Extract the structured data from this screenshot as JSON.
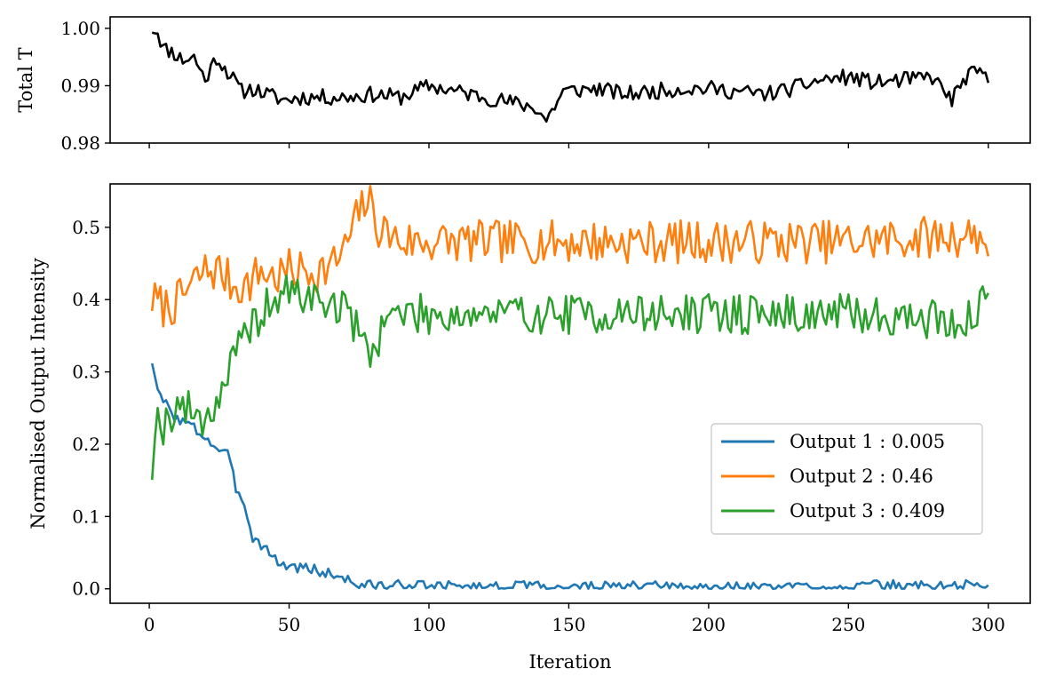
{
  "chart_data": [
    {
      "id": "top",
      "type": "line",
      "title": "",
      "xlabel": "",
      "ylabel": "Total T",
      "xlim": [
        -14,
        315
      ],
      "ylim": [
        0.98,
        1.002
      ],
      "xticks": [
        0,
        50,
        100,
        150,
        200,
        250,
        300
      ],
      "show_xtick_labels": false,
      "yticks": [
        0.98,
        0.99,
        1.0
      ],
      "ytick_labels": [
        "0.98",
        "0.99",
        "1.00"
      ],
      "series": [
        {
          "name": "Total T",
          "color": "#000000",
          "keypoints": [
            [
              1,
              1.0
            ],
            [
              3,
              0.9995
            ],
            [
              5,
              0.9965
            ],
            [
              8,
              0.996
            ],
            [
              12,
              0.9945
            ],
            [
              16,
              0.995
            ],
            [
              20,
              0.991
            ],
            [
              24,
              0.995
            ],
            [
              28,
              0.9925
            ],
            [
              33,
              0.989
            ],
            [
              37,
              0.9895
            ],
            [
              42,
              0.9885
            ],
            [
              48,
              0.9875
            ],
            [
              55,
              0.988
            ],
            [
              60,
              0.988
            ],
            [
              70,
              0.988
            ],
            [
              80,
              0.9885
            ],
            [
              90,
              0.988
            ],
            [
              100,
              0.99
            ],
            [
              110,
              0.989
            ],
            [
              120,
              0.988
            ],
            [
              130,
              0.987
            ],
            [
              138,
              0.9862
            ],
            [
              142,
              0.984
            ],
            [
              148,
              0.989
            ],
            [
              160,
              0.9895
            ],
            [
              170,
              0.9885
            ],
            [
              180,
              0.989
            ],
            [
              190,
              0.9895
            ],
            [
              200,
              0.9895
            ],
            [
              210,
              0.989
            ],
            [
              220,
              0.9885
            ],
            [
              230,
              0.9895
            ],
            [
              240,
              0.991
            ],
            [
              250,
              0.9915
            ],
            [
              260,
              0.9905
            ],
            [
              270,
              0.991
            ],
            [
              280,
              0.9915
            ],
            [
              287,
              0.9875
            ],
            [
              292,
              0.9915
            ],
            [
              297,
              0.9925
            ],
            [
              300,
              0.9905
            ]
          ],
          "noise": 0.0014,
          "seed": 11,
          "last_value": 0.9905
        }
      ]
    },
    {
      "id": "bottom",
      "type": "line",
      "title": "",
      "xlabel": "Iteration",
      "ylabel": "Normalised Output Intensity",
      "xlim": [
        -14,
        315
      ],
      "ylim": [
        -0.02,
        0.56
      ],
      "xticks": [
        0,
        50,
        100,
        150,
        200,
        250,
        300
      ],
      "xtick_labels": [
        "0",
        "50",
        "100",
        "150",
        "200",
        "250",
        "300"
      ],
      "show_xtick_labels": true,
      "yticks": [
        0.0,
        0.1,
        0.2,
        0.3,
        0.4,
        0.5
      ],
      "ytick_labels": [
        "0.0",
        "0.1",
        "0.2",
        "0.3",
        "0.4",
        "0.5"
      ],
      "legend_position": "center-right",
      "series": [
        {
          "name": "Output 1",
          "legend_label": "Output 1 : 0.005",
          "color": "#1f77b4",
          "keypoints": [
            [
              1,
              0.316
            ],
            [
              3,
              0.27
            ],
            [
              6,
              0.255
            ],
            [
              10,
              0.235
            ],
            [
              15,
              0.225
            ],
            [
              20,
              0.21
            ],
            [
              24,
              0.195
            ],
            [
              28,
              0.185
            ],
            [
              31,
              0.14
            ],
            [
              34,
              0.12
            ],
            [
              37,
              0.07
            ],
            [
              41,
              0.06
            ],
            [
              45,
              0.04
            ],
            [
              50,
              0.03
            ],
            [
              55,
              0.03
            ],
            [
              60,
              0.025
            ],
            [
              65,
              0.02
            ],
            [
              70,
              0.015
            ],
            [
              75,
              0.005
            ],
            [
              90,
              0.004
            ],
            [
              120,
              0.003
            ],
            [
              200,
              0.002
            ],
            [
              300,
              0.005
            ]
          ],
          "noise": 0.008,
          "seed": 3,
          "last_value": 0.005
        },
        {
          "name": "Output 2",
          "legend_label": "Output 2 : 0.46",
          "color": "#ff7f0e",
          "keypoints": [
            [
              1,
              0.4
            ],
            [
              5,
              0.39
            ],
            [
              10,
              0.395
            ],
            [
              15,
              0.42
            ],
            [
              20,
              0.44
            ],
            [
              25,
              0.44
            ],
            [
              30,
              0.42
            ],
            [
              35,
              0.42
            ],
            [
              40,
              0.44
            ],
            [
              45,
              0.43
            ],
            [
              50,
              0.44
            ],
            [
              55,
              0.44
            ],
            [
              60,
              0.44
            ],
            [
              65,
              0.445
            ],
            [
              70,
              0.47
            ],
            [
              75,
              0.52
            ],
            [
              78,
              0.54
            ],
            [
              82,
              0.5
            ],
            [
              90,
              0.48
            ],
            [
              100,
              0.48
            ],
            [
              150,
              0.48
            ],
            [
              200,
              0.48
            ],
            [
              250,
              0.48
            ],
            [
              297,
              0.49
            ],
            [
              300,
              0.46
            ]
          ],
          "noise": 0.03,
          "seed": 7,
          "last_value": 0.46
        },
        {
          "name": "Output 3",
          "legend_label": "Output 3 : 0.409",
          "color": "#2ca02c",
          "keypoints": [
            [
              1,
              0.165
            ],
            [
              2,
              0.235
            ],
            [
              5,
              0.225
            ],
            [
              10,
              0.255
            ],
            [
              15,
              0.245
            ],
            [
              20,
              0.235
            ],
            [
              25,
              0.265
            ],
            [
              28,
              0.3
            ],
            [
              32,
              0.33
            ],
            [
              36,
              0.36
            ],
            [
              40,
              0.38
            ],
            [
              45,
              0.4
            ],
            [
              50,
              0.41
            ],
            [
              60,
              0.4
            ],
            [
              68,
              0.39
            ],
            [
              72,
              0.38
            ],
            [
              76,
              0.34
            ],
            [
              80,
              0.33
            ],
            [
              85,
              0.38
            ],
            [
              100,
              0.38
            ],
            [
              150,
              0.38
            ],
            [
              200,
              0.38
            ],
            [
              250,
              0.38
            ],
            [
              295,
              0.37
            ],
            [
              300,
              0.409
            ]
          ],
          "noise": 0.028,
          "seed": 19,
          "last_value": 0.409
        }
      ]
    }
  ]
}
